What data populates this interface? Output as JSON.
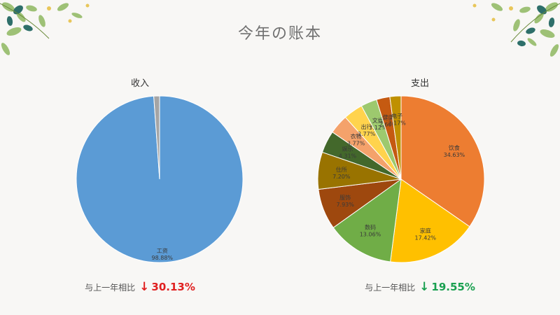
{
  "page": {
    "title": "今年の账本"
  },
  "colors": {
    "down_red": "#e02020",
    "down_green": "#1aa050"
  },
  "income": {
    "compare_label": "与上一年相比",
    "compare_arrow": "↓",
    "compare_value": "30.13%",
    "compare_color": "#e02020"
  },
  "expense": {
    "compare_label": "与上一年相比",
    "compare_arrow": "↓",
    "compare_value": "19.55%",
    "compare_color": "#1aa050"
  },
  "chart_data": [
    {
      "type": "pie",
      "title": "收入",
      "slices": [
        {
          "label": "工资",
          "value": 98.88,
          "pct_text": "98.88%",
          "color": "#5b9bd5"
        },
        {
          "label": "",
          "value": 1.12,
          "pct_text": "",
          "color": "#a5a5a5"
        }
      ]
    },
    {
      "type": "pie",
      "title": "支出",
      "slices": [
        {
          "label": "饮食",
          "value": 34.63,
          "pct_text": "34.63%",
          "color": "#ed7d31"
        },
        {
          "label": "家庭",
          "value": 17.42,
          "pct_text": "17.42%",
          "color": "#ffc000"
        },
        {
          "label": "数码",
          "value": 13.06,
          "pct_text": "13.06%",
          "color": "#70ad47"
        },
        {
          "label": "服饰",
          "value": 7.93,
          "pct_text": "7.93%",
          "color": "#9e480e"
        },
        {
          "label": "住所",
          "value": 7.2,
          "pct_text": "7.20%",
          "color": "#997300"
        },
        {
          "label": "娱乐",
          "value": 4.31,
          "pct_text": "4.31%",
          "color": "#43682b"
        },
        {
          "label": "衣物",
          "value": 3.77,
          "pct_text": "3.77%",
          "color": "#f4a26b"
        },
        {
          "label": "出行",
          "value": 3.77,
          "pct_text": "3.77%",
          "color": "#ffd34d"
        },
        {
          "label": "文娱",
          "value": 3.12,
          "pct_text": "3.12%",
          "color": "#9dc96e"
        },
        {
          "label": "健康",
          "value": 2.6,
          "pct_text": "2.60%",
          "color": "#c55a11"
        },
        {
          "label": "电子",
          "value": 2.17,
          "pct_text": "2.17%",
          "color": "#bf9000"
        }
      ]
    }
  ]
}
